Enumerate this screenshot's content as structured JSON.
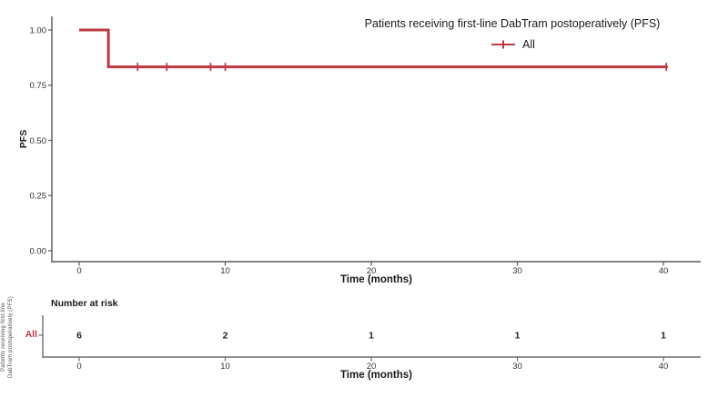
{
  "colors": {
    "curve": "#bd3a42",
    "axis_main": "#595959",
    "axis_risk": "#6e6e6e",
    "tick_text": "#333333",
    "risk_value_text": "#262626",
    "title_text": "#1a1a1a"
  },
  "main_chart": {
    "legend_title": "Patients receiving first-line DabTram postoperatively (PFS)",
    "legend_item_label": "All",
    "ylabel": "PFS",
    "xlabel": "Time (months)",
    "y_tick_labels": [
      "1.00",
      "0.75",
      "0.50",
      "0.25",
      "0.00"
    ],
    "x_tick_labels": [
      "0",
      "10",
      "20",
      "30",
      "40"
    ]
  },
  "chart_data": {
    "type": "line",
    "subtype": "kaplan-meier-step",
    "title": "Patients receiving first-line DabTram postoperatively (PFS)",
    "xlabel": "Time (months)",
    "ylabel": "PFS",
    "xlim": [
      0,
      42
    ],
    "ylim": [
      0,
      1.05
    ],
    "x_ticks": [
      0,
      10,
      20,
      30,
      40
    ],
    "y_ticks": [
      1.0,
      0.75,
      0.5,
      0.25,
      0.0
    ],
    "grid": false,
    "legend_position": "top-right",
    "series": [
      {
        "name": "All",
        "color": "#bd3a42",
        "steps": [
          [
            0,
            1.0
          ],
          [
            2,
            1.0
          ],
          [
            2,
            0.833
          ],
          [
            40.3,
            0.833
          ]
        ],
        "censor_marks": [
          [
            4,
            0.833
          ],
          [
            6,
            0.833
          ],
          [
            9,
            0.833
          ],
          [
            10,
            0.833
          ],
          [
            40.2,
            0.833
          ]
        ]
      }
    ],
    "number_at_risk": {
      "group": "All",
      "times": [
        0,
        10,
        20,
        30,
        40
      ],
      "counts": [
        6,
        2,
        1,
        1,
        1
      ]
    }
  },
  "risk_table": {
    "title": "Number at risk",
    "row_label": "All",
    "values": [
      "6",
      "2",
      "1",
      "1",
      "1"
    ],
    "x_tick_labels": [
      "0",
      "10",
      "20",
      "30",
      "40"
    ],
    "xlabel": "Time (months)",
    "left_label_line1": "Patients  receiving  first-line",
    "left_label_line2": "DabTram postoperatively (PFS)"
  }
}
